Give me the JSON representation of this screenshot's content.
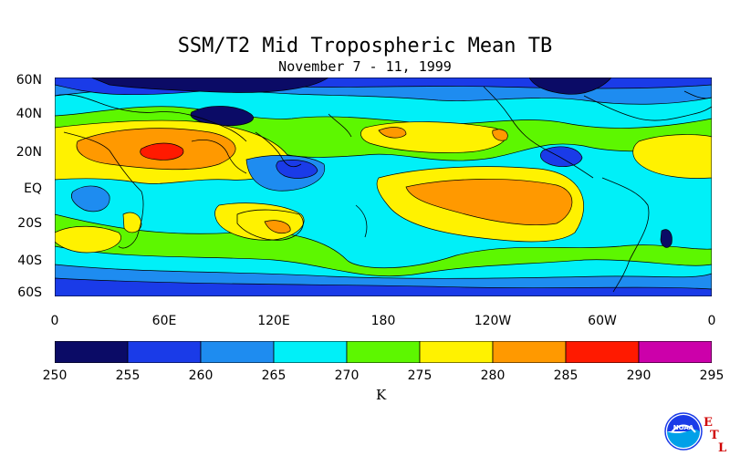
{
  "title": "SSM/T2 Mid Tropospheric Mean TB",
  "subtitle": "November 7 - 11, 1999",
  "lat_labels": [
    "60N",
    "40N",
    "20N",
    "EQ",
    "20S",
    "40S",
    "60S"
  ],
  "lon_labels": [
    "0",
    "60E",
    "120E",
    "180",
    "120W",
    "60W",
    "0"
  ],
  "colorbar": {
    "ticks": [
      "250",
      "255",
      "260",
      "265",
      "270",
      "275",
      "280",
      "285",
      "290",
      "295"
    ],
    "colors": [
      "#0b0b66",
      "#1a3be8",
      "#1e8cf0",
      "#00f0f8",
      "#5df700",
      "#fff200",
      "#ff9900",
      "#ff1a00",
      "#cc00aa"
    ],
    "units": "K"
  },
  "logo": {
    "text": "NOAA",
    "etl_letters": [
      "E",
      "T",
      "L"
    ],
    "icon": "noaa-logo-icon"
  }
}
